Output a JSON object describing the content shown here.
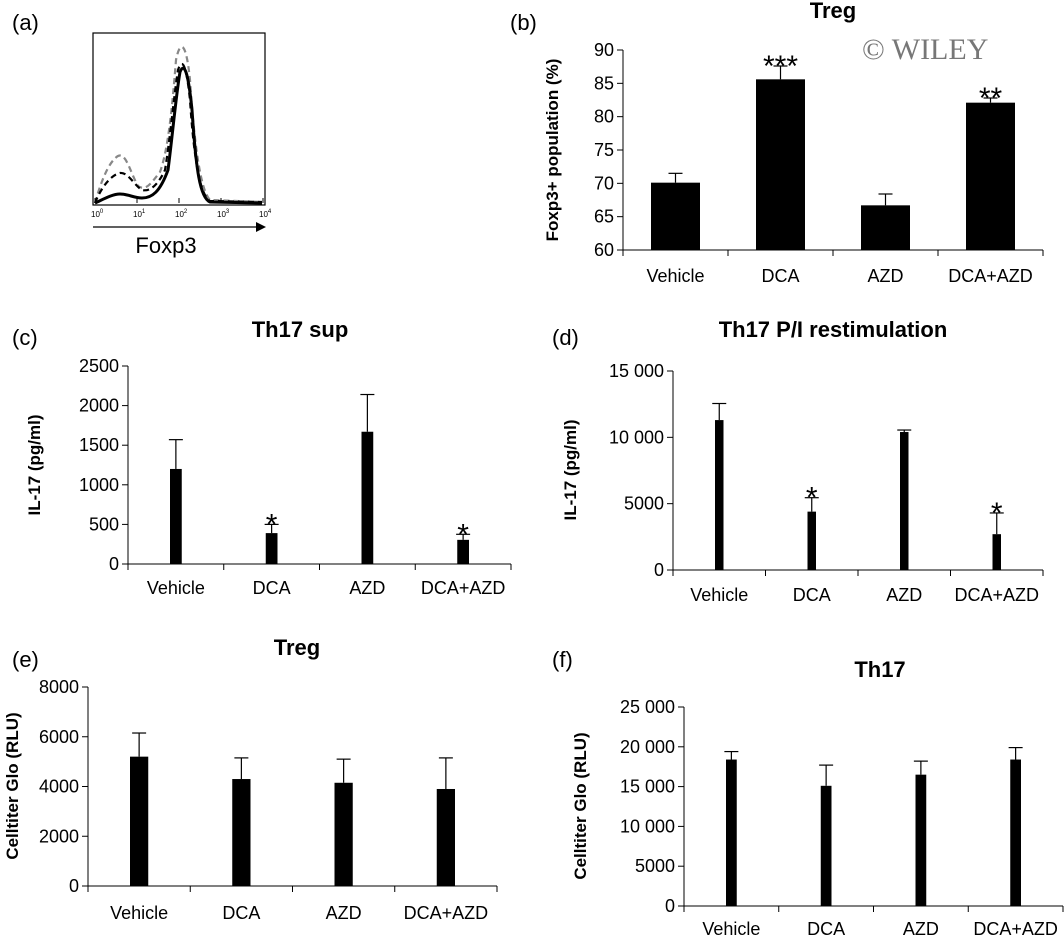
{
  "watermark": "© WILEY",
  "flow": {
    "panel_label": "(a)",
    "xlabel": "Foxp3",
    "ticks": [
      {
        "base": "10",
        "exp": "0"
      },
      {
        "base": "10",
        "exp": "1"
      },
      {
        "base": "10",
        "exp": "2"
      },
      {
        "base": "10",
        "exp": "3"
      },
      {
        "base": "10",
        "exp": "4"
      }
    ],
    "line_styles": [
      "solid",
      "dashed",
      "dashed-gray"
    ]
  },
  "chart_data": [
    {
      "panel": "(b)",
      "type": "bar",
      "title": "Treg",
      "ylabel": "Foxp3+ population (%)",
      "categories": [
        "Vehicle",
        "DCA",
        "AZD",
        "DCA+AZD"
      ],
      "values": [
        70.1,
        85.6,
        66.7,
        82.1
      ],
      "errors": [
        1.4,
        2.0,
        1.7,
        0.7
      ],
      "significance": [
        "",
        "***",
        "",
        "**"
      ],
      "ylim": [
        60,
        90
      ],
      "ytick_values": [
        60,
        65,
        70,
        75,
        80,
        85,
        90
      ],
      "ytick_labels": [
        "60",
        "65",
        "70",
        "75",
        "80",
        "85",
        "90"
      ],
      "bar_color": "#000000"
    },
    {
      "panel": "(c)",
      "type": "bar",
      "title": "Th17 sup",
      "ylabel": "IL-17 (pg/ml)",
      "categories": [
        "Vehicle",
        "DCA",
        "AZD",
        "DCA+AZD"
      ],
      "values": [
        1200,
        390,
        1670,
        305
      ],
      "errors": [
        370,
        110,
        470,
        70
      ],
      "significance": [
        "",
        "*",
        "",
        "*"
      ],
      "ylim": [
        0,
        2500
      ],
      "ytick_values": [
        0,
        500,
        1000,
        1500,
        2000,
        2500
      ],
      "ytick_labels": [
        "0",
        "500",
        "1000",
        "1500",
        "2000",
        "2500"
      ],
      "bar_color": "#000000"
    },
    {
      "panel": "(d)",
      "type": "bar",
      "title": "Th17 P/I restimulation",
      "ylabel": "IL-17 (pg/ml)",
      "categories": [
        "Vehicle",
        "DCA",
        "AZD",
        "DCA+AZD"
      ],
      "values": [
        11300,
        4400,
        10400,
        2700
      ],
      "errors": [
        1250,
        1050,
        150,
        1600
      ],
      "significance": [
        "",
        "*",
        "",
        "*"
      ],
      "ylim": [
        0,
        15000
      ],
      "ytick_values": [
        0,
        5000,
        10000,
        15000
      ],
      "ytick_labels": [
        "0",
        "5000",
        "10 000",
        "15 000"
      ],
      "bar_color": "#000000"
    },
    {
      "panel": "(e)",
      "type": "bar",
      "title": "Treg",
      "ylabel": "Celltiter Glo (RLU)",
      "categories": [
        "Vehicle",
        "DCA",
        "AZD",
        "DCA+AZD"
      ],
      "values": [
        5200,
        4300,
        4150,
        3900
      ],
      "errors": [
        950,
        850,
        950,
        1250
      ],
      "significance": [
        "",
        "",
        "",
        ""
      ],
      "ylim": [
        0,
        8000
      ],
      "ytick_values": [
        0,
        2000,
        4000,
        6000,
        8000
      ],
      "ytick_labels": [
        "0",
        "2000",
        "4000",
        "6000",
        "8000"
      ],
      "bar_color": "#000000"
    },
    {
      "panel": "(f)",
      "type": "bar",
      "title": "Th17",
      "ylabel": "Celltiter Glo (RLU)",
      "categories": [
        "Vehicle",
        "DCA",
        "AZD",
        "DCA+AZD"
      ],
      "values": [
        18400,
        15100,
        16500,
        18400
      ],
      "errors": [
        1000,
        2600,
        1700,
        1500
      ],
      "significance": [
        "",
        "",
        "",
        ""
      ],
      "ylim": [
        0,
        25000
      ],
      "ytick_values": [
        0,
        5000,
        10000,
        15000,
        20000,
        25000
      ],
      "ytick_labels": [
        "0",
        "5000",
        "10 000",
        "15 000",
        "20 000",
        "25 000"
      ],
      "bar_color": "#000000"
    }
  ]
}
